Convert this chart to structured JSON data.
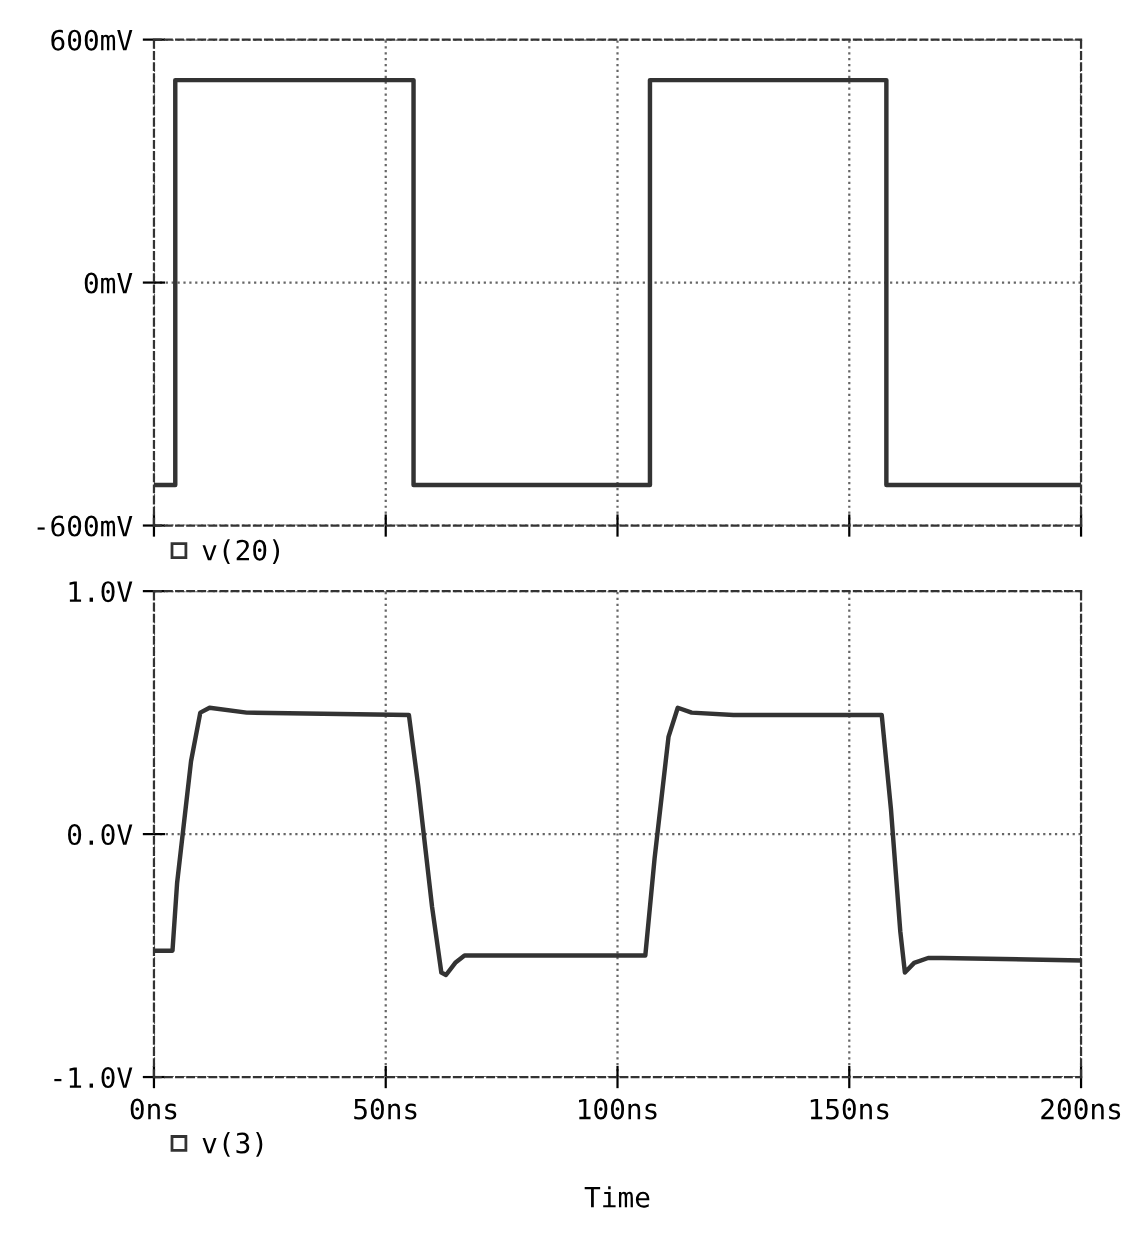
{
  "chart_data": [
    {
      "type": "line",
      "xlim": [
        0,
        200
      ],
      "xticks": [
        {
          "value": 0,
          "label": null
        },
        {
          "value": 50,
          "label": null
        },
        {
          "value": 100,
          "label": null
        },
        {
          "value": 150,
          "label": null
        },
        {
          "value": 200,
          "label": null
        }
      ],
      "ylim": [
        -600,
        600
      ],
      "yticks": [
        {
          "value": -600,
          "label": "-600mV"
        },
        {
          "value": 0,
          "label": "0mV"
        },
        {
          "value": 600,
          "label": "600mV"
        }
      ],
      "tick_labels": "y",
      "grid": true,
      "legend": "bottom left",
      "line_style": "solid",
      "series": [
        {
          "name": "v(20)",
          "color": "#333333",
          "x": [
            0,
            4.6,
            4.6,
            56,
            56,
            107,
            107,
            158,
            158,
            200
          ],
          "values": [
            -500,
            -500,
            500,
            500,
            -500,
            -500,
            500,
            500,
            -500,
            -500
          ]
        }
      ]
    },
    {
      "type": "line",
      "xlabel": "Time",
      "xlim": [
        0,
        200
      ],
      "xticks": [
        {
          "value": 0,
          "label": "0ns"
        },
        {
          "value": 50,
          "label": "50ns"
        },
        {
          "value": 100,
          "label": "100ns"
        },
        {
          "value": 150,
          "label": "150ns"
        },
        {
          "value": 200,
          "label": "200ns"
        }
      ],
      "ylim": [
        -1.0,
        1.0
      ],
      "yticks": [
        {
          "value": -1.0,
          "label": "-1.0V"
        },
        {
          "value": 0.0,
          "label": "0.0V"
        },
        {
          "value": 1.0,
          "label": "1.0V"
        }
      ],
      "grid": true,
      "legend": "bottom left",
      "line_style": "solid",
      "series": [
        {
          "name": "v(3)",
          "color": "#333333",
          "x": [
            0,
            4,
            5,
            8,
            10,
            12,
            20,
            55,
            57,
            60,
            62,
            63,
            65,
            67,
            70,
            80,
            106,
            108,
            111,
            113,
            116,
            125,
            157,
            159,
            161,
            162,
            164,
            167,
            170,
            200
          ],
          "values": [
            -0.48,
            -0.48,
            -0.2,
            0.3,
            0.5,
            0.52,
            0.5,
            0.49,
            0.2,
            -0.3,
            -0.57,
            -0.58,
            -0.53,
            -0.5,
            -0.5,
            -0.5,
            -0.5,
            -0.1,
            0.4,
            0.52,
            0.5,
            0.49,
            0.49,
            0.1,
            -0.4,
            -0.57,
            -0.53,
            -0.51,
            -0.51,
            -0.52
          ]
        }
      ]
    }
  ]
}
